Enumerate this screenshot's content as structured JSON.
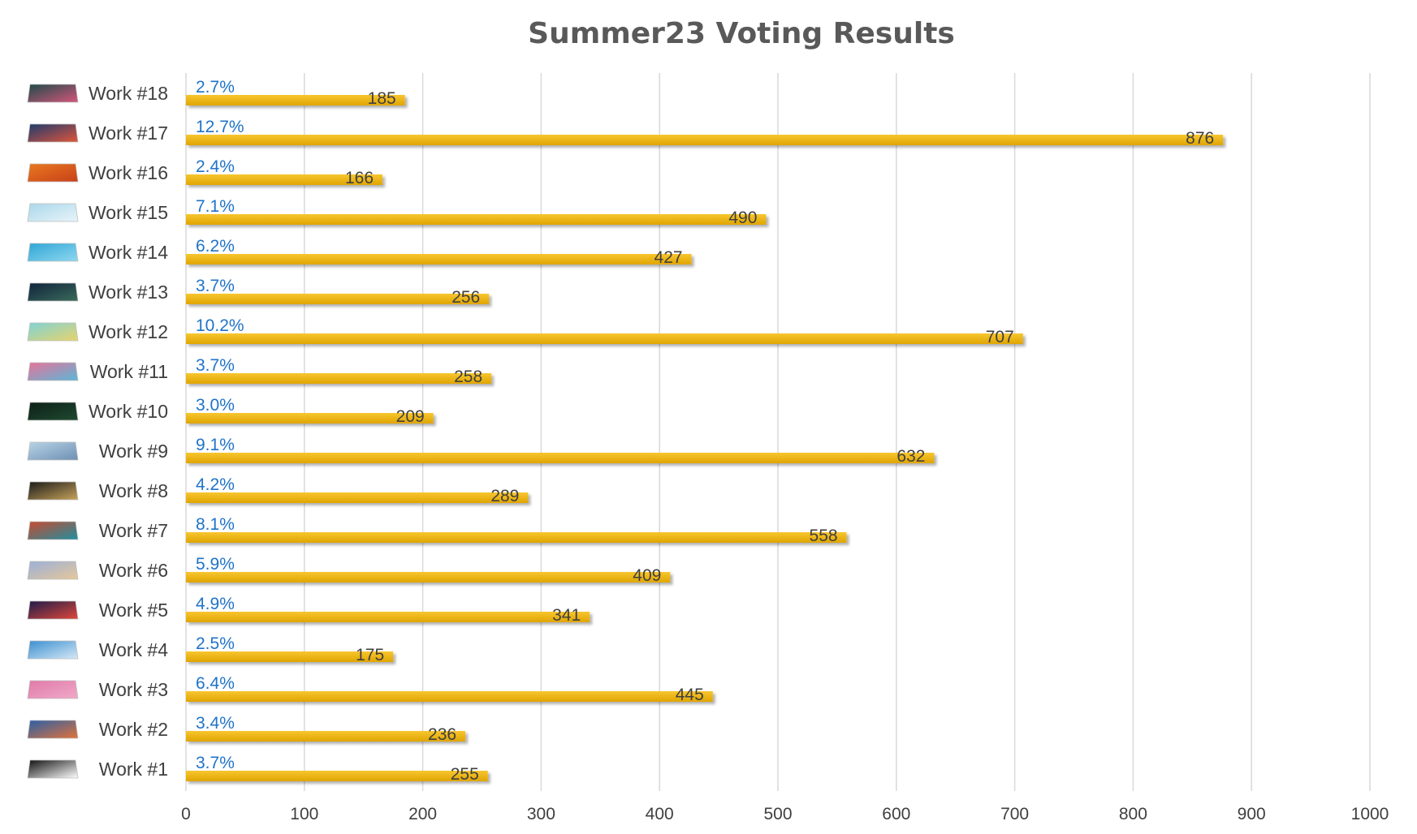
{
  "chart_data": {
    "type": "bar",
    "orientation": "horizontal",
    "title": "Summer23 Voting Results",
    "xlabel": "",
    "ylabel": "",
    "xlim": [
      0,
      1000
    ],
    "x_ticks": [
      0,
      100,
      200,
      300,
      400,
      500,
      600,
      700,
      800,
      900,
      1000
    ],
    "grid": "vertical",
    "legend": "none",
    "bar_color": "#f0b400",
    "percent_label_color": "#1f73c9",
    "categories": [
      "Work #18",
      "Work #17",
      "Work #16",
      "Work #15",
      "Work #14",
      "Work #13",
      "Work #12",
      "Work #11",
      "Work #10",
      "Work #9",
      "Work #8",
      "Work #7",
      "Work #6",
      "Work #5",
      "Work #4",
      "Work #3",
      "Work #2",
      "Work #1"
    ],
    "values": [
      185,
      876,
      166,
      490,
      427,
      256,
      707,
      258,
      209,
      632,
      289,
      558,
      409,
      341,
      175,
      445,
      236,
      255
    ],
    "percent_labels": [
      "2.7%",
      "12.7%",
      "2.4%",
      "7.1%",
      "6.2%",
      "3.7%",
      "10.2%",
      "3.7%",
      "3.0%",
      "9.1%",
      "4.2%",
      "8.1%",
      "5.9%",
      "4.9%",
      "2.5%",
      "6.4%",
      "3.4%",
      "3.7%"
    ],
    "thumbnail_colors": [
      [
        "#1d4a4a",
        "#d4567a"
      ],
      [
        "#1c3a6e",
        "#e0563a"
      ],
      [
        "#e8791e",
        "#c9401a"
      ],
      [
        "#a9d7ea",
        "#e8f4f9"
      ],
      [
        "#2fa5d6",
        "#8fd8ef"
      ],
      [
        "#10233d",
        "#3a6b5a"
      ],
      [
        "#7fd3d6",
        "#e8d36b"
      ],
      [
        "#e8739a",
        "#5ab7d6"
      ],
      [
        "#0e1f18",
        "#1f4a30"
      ],
      [
        "#b9d4e6",
        "#6d8fb3"
      ],
      [
        "#1a1a1a",
        "#c7a35b"
      ],
      [
        "#c84a2f",
        "#1e8fa0"
      ],
      [
        "#9ab0d9",
        "#e6c79a"
      ],
      [
        "#1c1c4a",
        "#e0473a"
      ],
      [
        "#3a8fd0",
        "#d6e8f5"
      ],
      [
        "#e07aa8",
        "#f0a9c8"
      ],
      [
        "#2a5fa8",
        "#e0733a"
      ],
      [
        "#101010",
        "#ffffff"
      ]
    ]
  }
}
